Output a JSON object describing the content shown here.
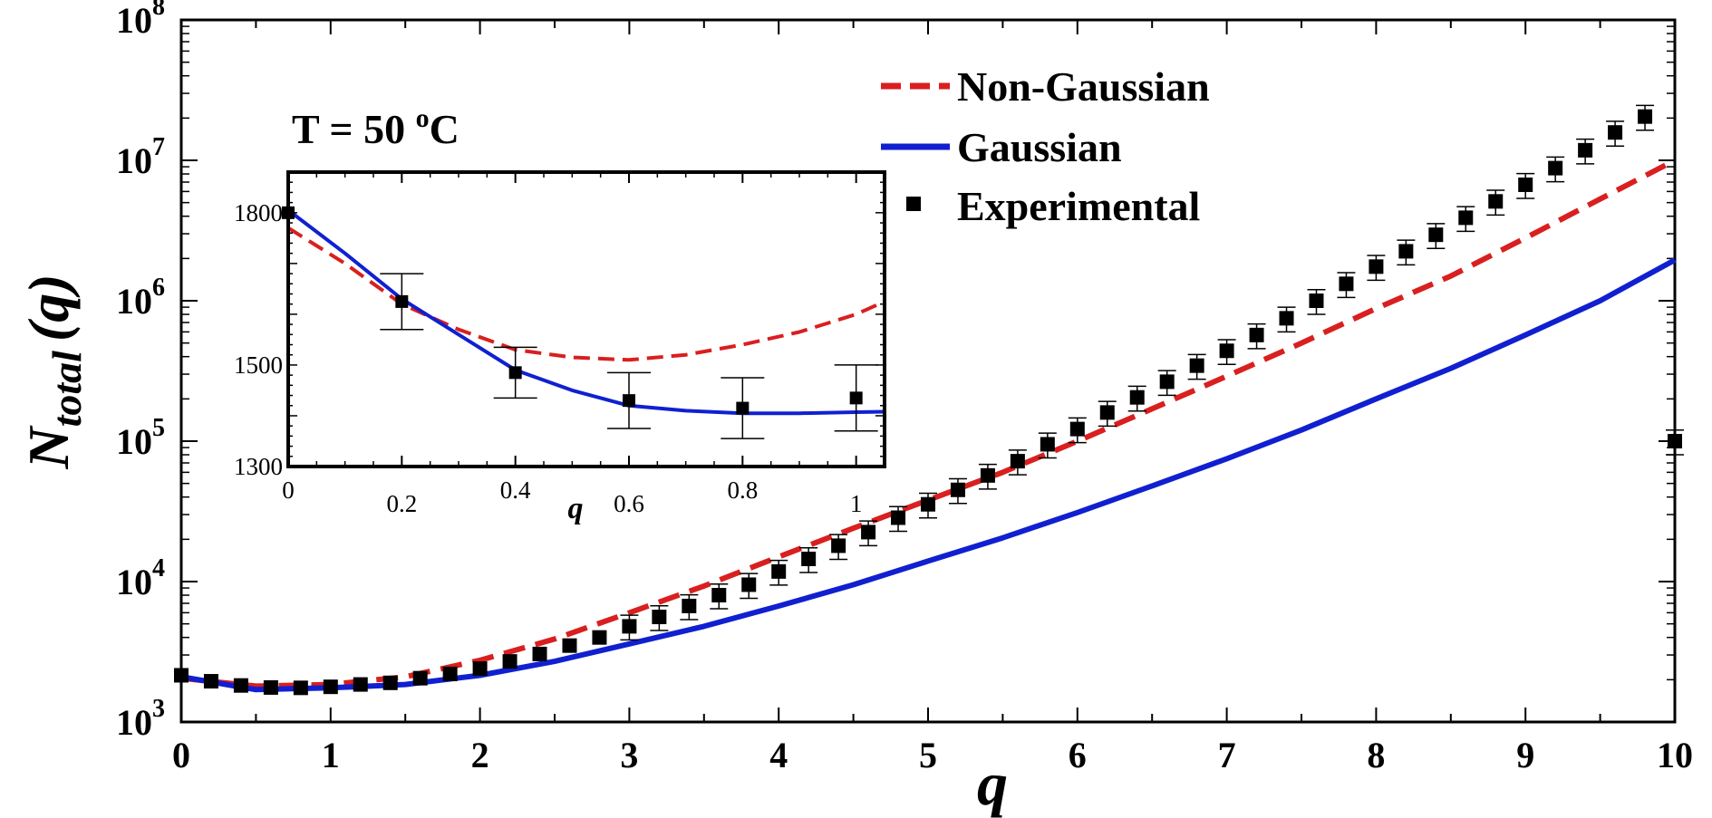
{
  "chart_data": [
    {
      "type": "line",
      "name": "main",
      "xlabel": "q",
      "ylabel": {
        "base": "N",
        "sub": "total",
        "arg": "(q)"
      },
      "annotation": {
        "prefix": "T = 50 ",
        "sup": "o",
        "suffix": "C"
      },
      "xlim": [
        0,
        10
      ],
      "ylim": [
        1000,
        100000000
      ],
      "yscale": "log",
      "xticks": [
        "0",
        "1",
        "2",
        "3",
        "4",
        "5",
        "6",
        "7",
        "8",
        "9",
        "10"
      ],
      "yticks": [
        {
          "base": "10",
          "exp": "3",
          "value": 1000
        },
        {
          "base": "10",
          "exp": "4",
          "value": 10000
        },
        {
          "base": "10",
          "exp": "5",
          "value": 100000
        },
        {
          "base": "10",
          "exp": "6",
          "value": 1000000
        },
        {
          "base": "10",
          "exp": "7",
          "value": 10000000
        },
        {
          "base": "10",
          "exp": "8",
          "value": 100000000
        }
      ],
      "legend": {
        "position": "top-right",
        "entries": [
          {
            "label": "Non-Gaussian",
            "style": "dashed",
            "color": "#d91f1f"
          },
          {
            "label": "Gaussian",
            "style": "solid",
            "color": "#1020d0"
          },
          {
            "label": "Experimental",
            "style": "square-marker",
            "color": "#000000"
          }
        ]
      },
      "series": [
        {
          "name": "Non-Gaussian",
          "color": "#d91f1f",
          "x": [
            0,
            0.5,
            1,
            1.5,
            2,
            2.5,
            3,
            3.5,
            4,
            4.5,
            5,
            5.5,
            6,
            6.5,
            7,
            7.5,
            8,
            8.5,
            9,
            9.5,
            10
          ],
          "y": [
            2050,
            1800,
            1850,
            2100,
            2750,
            3900,
            6000,
            9300,
            15000,
            24000,
            38000,
            60000,
            100000,
            170000,
            290000,
            500000,
            880000,
            1500000,
            2800000,
            5300000,
            10000000
          ]
        },
        {
          "name": "Gaussian",
          "color": "#1020d0",
          "x": [
            0,
            0.5,
            1,
            1.5,
            2,
            2.5,
            3,
            3.5,
            4,
            4.5,
            5,
            5.5,
            6,
            6.5,
            7,
            7.5,
            8,
            8.5,
            9,
            9.5,
            10
          ],
          "y": [
            2100,
            1700,
            1750,
            1850,
            2150,
            2700,
            3600,
            4800,
            6700,
            9500,
            14000,
            20500,
            31000,
            48000,
            75000,
            120000,
            200000,
            330000,
            570000,
            1000000,
            1950000
          ]
        },
        {
          "name": "Experimental",
          "color": "#000000",
          "x": [
            0,
            0.2,
            0.4,
            0.6,
            0.8,
            1.0,
            1.2,
            1.4,
            1.6,
            1.8,
            2.0,
            2.2,
            2.4,
            2.6,
            2.8,
            3.0,
            3.2,
            3.4,
            3.6,
            3.8,
            4.0,
            4.2,
            4.4,
            4.6,
            4.8,
            5.0,
            5.2,
            5.4,
            5.6,
            5.8,
            6.0,
            6.2,
            6.4,
            6.6,
            6.8,
            7.0,
            7.2,
            7.4,
            7.6,
            7.8,
            8.0,
            8.2,
            8.4,
            8.6,
            8.8,
            9.0,
            9.2,
            9.4,
            9.6,
            9.8,
            10.0
          ],
          "y": [
            2150,
            1950,
            1820,
            1760,
            1750,
            1780,
            1850,
            1900,
            2050,
            2200,
            2400,
            2700,
            3050,
            3500,
            4000,
            4800,
            5600,
            6700,
            8000,
            9500,
            11800,
            14500,
            18000,
            22500,
            28500,
            35500,
            45000,
            57000,
            72000,
            95000,
            122000,
            160000,
            205000,
            265000,
            345000,
            440000,
            570000,
            750000,
            1000000,
            1320000,
            1750000,
            2250000,
            2950000,
            3900000,
            5100000,
            6700000,
            8800000,
            11800000,
            15800000,
            20500000,
            100000
          ],
          "err_rel": 0.2
        }
      ]
    },
    {
      "type": "line",
      "name": "inset",
      "xlabel": "q",
      "xlim": [
        0,
        1.05
      ],
      "ylim": [
        1300,
        1880
      ],
      "xticks": [
        "0",
        "0.2",
        "0.4",
        "0.6",
        "0.8",
        "1"
      ],
      "yticks": [
        "1300",
        "1500",
        "1800"
      ],
      "series": [
        {
          "name": "Non-Gaussian",
          "color": "#d91f1f",
          "x": [
            0,
            0.1,
            0.2,
            0.3,
            0.4,
            0.5,
            0.6,
            0.7,
            0.8,
            0.9,
            1.0,
            1.05
          ],
          "y": [
            1770,
            1700,
            1620,
            1570,
            1530,
            1515,
            1510,
            1520,
            1540,
            1565,
            1600,
            1625
          ]
        },
        {
          "name": "Gaussian",
          "color": "#1020d0",
          "x": [
            0,
            0.1,
            0.2,
            0.3,
            0.4,
            0.5,
            0.6,
            0.7,
            0.8,
            0.9,
            1.0,
            1.05
          ],
          "y": [
            1805,
            1720,
            1630,
            1560,
            1490,
            1450,
            1420,
            1410,
            1405,
            1405,
            1407,
            1408
          ]
        },
        {
          "name": "Experimental",
          "color": "#000000",
          "x": [
            0,
            0.2,
            0.4,
            0.6,
            0.8,
            1.0
          ],
          "y": [
            1800,
            1625,
            1485,
            1430,
            1415,
            1435
          ],
          "err": [
            null,
            55,
            50,
            55,
            60,
            65
          ]
        }
      ]
    }
  ]
}
